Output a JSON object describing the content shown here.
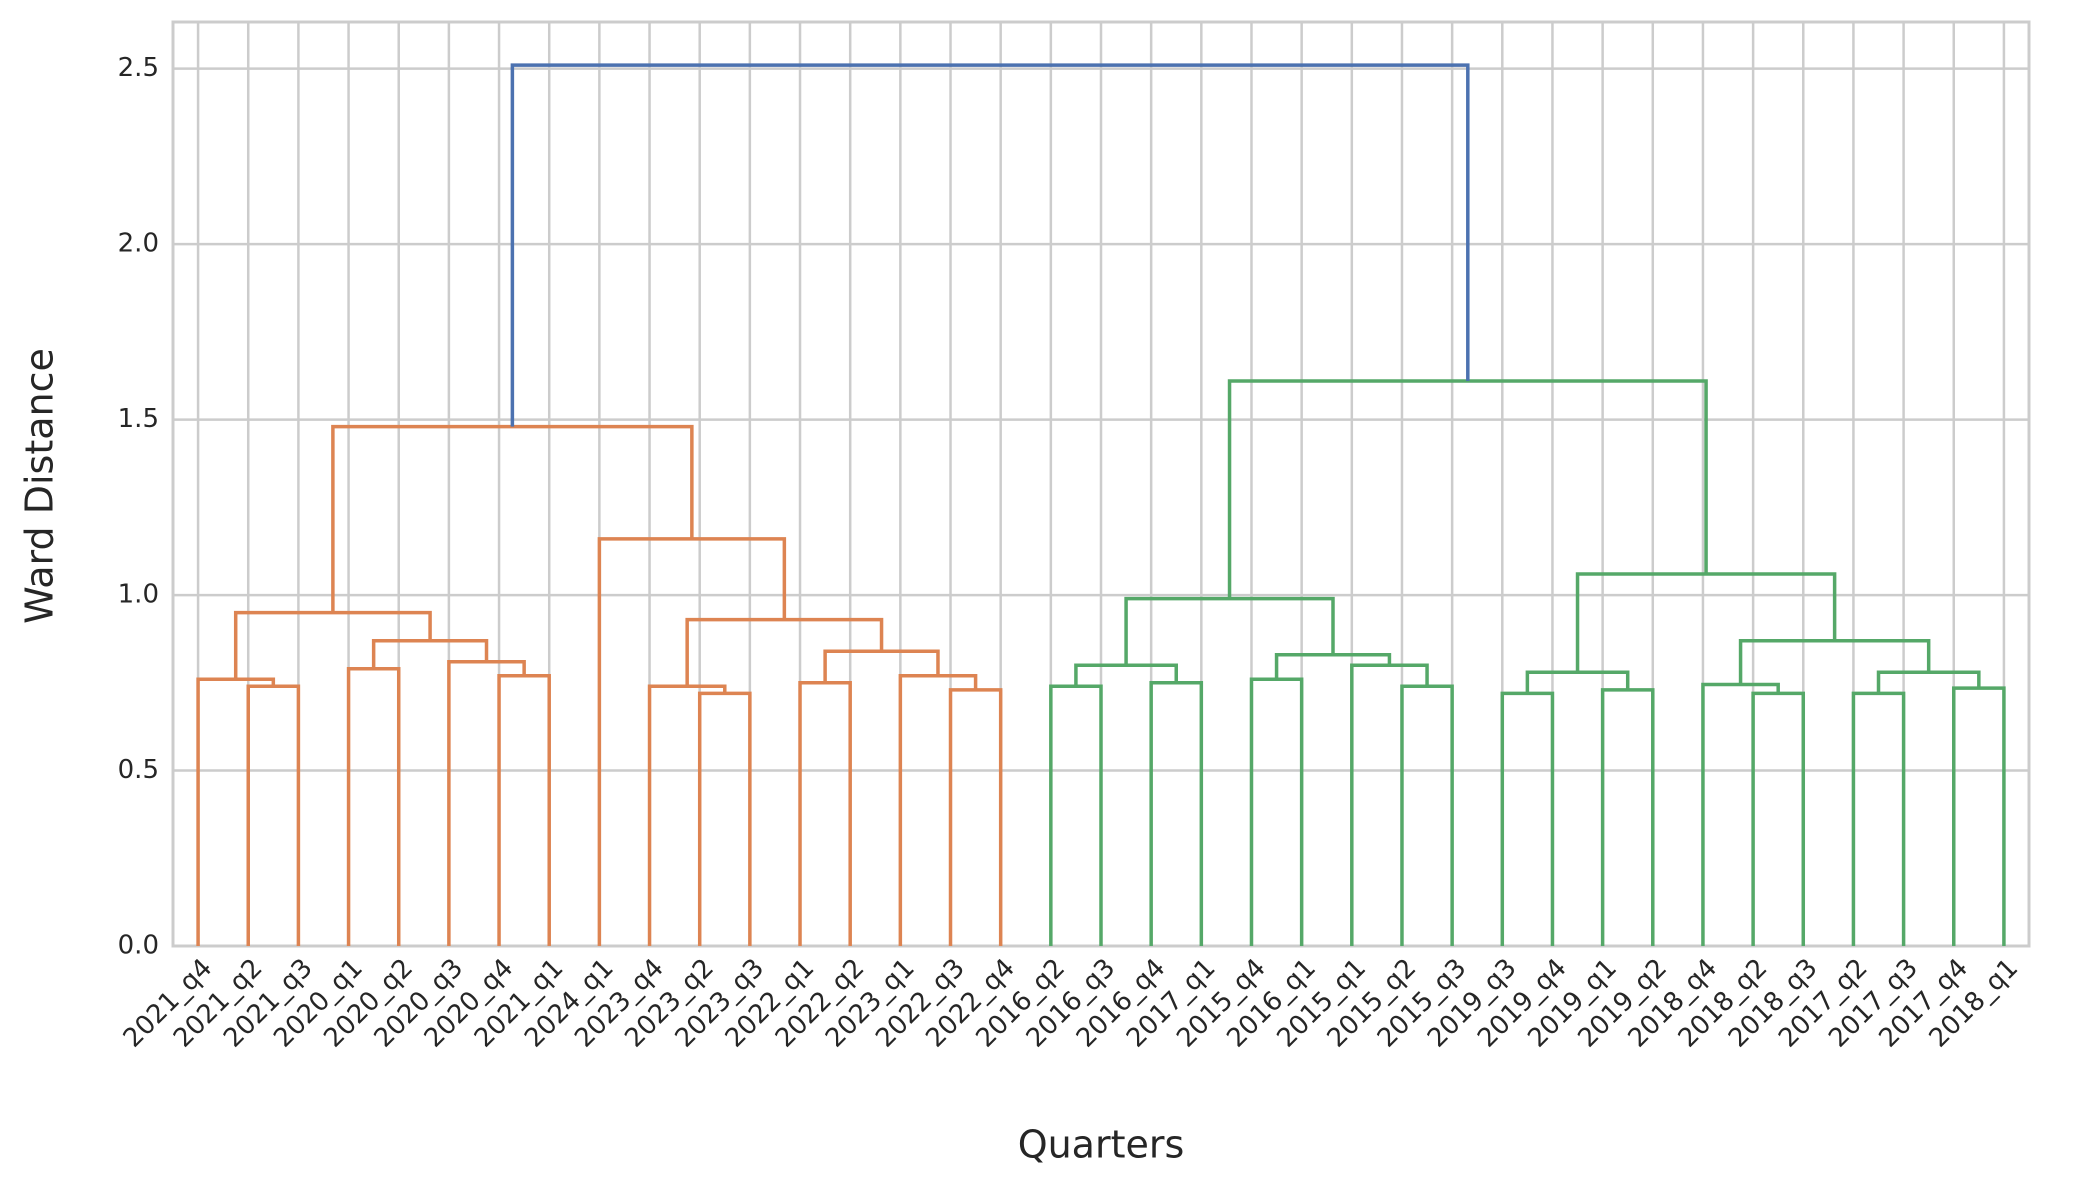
{
  "chart_data": {
    "type": "dendrogram",
    "xlabel": "Quarters",
    "ylabel": "Ward Distance",
    "ylim": [
      0,
      2.633
    ],
    "yticks": [
      {
        "value": 0,
        "label": "0.0"
      },
      0.5,
      {
        "value": 1,
        "label": "1.0"
      },
      1.5,
      {
        "value": 2,
        "label": "2.0"
      },
      2.5
    ],
    "grid": true,
    "labels": [
      "2021_q4",
      "2021_q2",
      "2021_q3",
      "2020_q1",
      "2020_q2",
      "2020_q3",
      "2020_q4",
      "2021_q1",
      "2024_q1",
      "2023_q4",
      "2023_q2",
      "2023_q3",
      "2022_q1",
      "2022_q2",
      "2023_q1",
      "2022_q3",
      "2022_q4",
      "2016_q2",
      "2016_q3",
      "2016_q4",
      "2017_q1",
      "2015_q4",
      "2016_q1",
      "2015_q1",
      "2015_q2",
      "2015_q3",
      "2019_q3",
      "2019_q4",
      "2019_q1",
      "2019_q2",
      "2018_q4",
      "2018_q2",
      "2018_q3",
      "2017_q2",
      "2017_q3",
      "2017_q4",
      "2018_q1"
    ],
    "links": [
      {
        "children": [
          1,
          2
        ],
        "height": 0.74,
        "color": "#dd8452"
      },
      {
        "children": [
          0,
          37
        ],
        "height": 0.76,
        "color": "#dd8452"
      },
      {
        "children": [
          3,
          4
        ],
        "height": 0.79,
        "color": "#dd8452"
      },
      {
        "children": [
          6,
          7
        ],
        "height": 0.77,
        "color": "#dd8452"
      },
      {
        "children": [
          5,
          40
        ],
        "height": 0.81,
        "color": "#dd8452"
      },
      {
        "children": [
          39,
          41
        ],
        "height": 0.87,
        "color": "#dd8452"
      },
      {
        "children": [
          38,
          42
        ],
        "height": 0.95,
        "color": "#dd8452"
      },
      {
        "children": [
          10,
          11
        ],
        "height": 0.72,
        "color": "#dd8452"
      },
      {
        "children": [
          9,
          44
        ],
        "height": 0.74,
        "color": "#dd8452"
      },
      {
        "children": [
          12,
          13
        ],
        "height": 0.75,
        "color": "#dd8452"
      },
      {
        "children": [
          15,
          16
        ],
        "height": 0.73,
        "color": "#dd8452"
      },
      {
        "children": [
          14,
          47
        ],
        "height": 0.77,
        "color": "#dd8452"
      },
      {
        "children": [
          46,
          48
        ],
        "height": 0.84,
        "color": "#dd8452"
      },
      {
        "children": [
          45,
          49
        ],
        "height": 0.93,
        "color": "#dd8452"
      },
      {
        "children": [
          8,
          50
        ],
        "height": 1.16,
        "color": "#dd8452"
      },
      {
        "children": [
          43,
          51
        ],
        "height": 1.48,
        "color": "#dd8452"
      },
      {
        "children": [
          17,
          18
        ],
        "height": 0.74,
        "color": "#55a868"
      },
      {
        "children": [
          19,
          20
        ],
        "height": 0.75,
        "color": "#55a868"
      },
      {
        "children": [
          53,
          54
        ],
        "height": 0.8,
        "color": "#55a868"
      },
      {
        "children": [
          21,
          22
        ],
        "height": 0.76,
        "color": "#55a868"
      },
      {
        "children": [
          24,
          25
        ],
        "height": 0.74,
        "color": "#55a868"
      },
      {
        "children": [
          23,
          57
        ],
        "height": 0.8,
        "color": "#55a868"
      },
      {
        "children": [
          56,
          58
        ],
        "height": 0.83,
        "color": "#55a868"
      },
      {
        "children": [
          55,
          59
        ],
        "height": 0.99,
        "color": "#55a868"
      },
      {
        "children": [
          26,
          27
        ],
        "height": 0.72,
        "color": "#55a868"
      },
      {
        "children": [
          28,
          29
        ],
        "height": 0.73,
        "color": "#55a868"
      },
      {
        "children": [
          61,
          62
        ],
        "height": 0.78,
        "color": "#55a868"
      },
      {
        "children": [
          31,
          32
        ],
        "height": 0.72,
        "color": "#55a868"
      },
      {
        "children": [
          30,
          64
        ],
        "height": 0.745,
        "color": "#55a868"
      },
      {
        "children": [
          33,
          34
        ],
        "height": 0.72,
        "color": "#55a868"
      },
      {
        "children": [
          35,
          36
        ],
        "height": 0.735,
        "color": "#55a868"
      },
      {
        "children": [
          66,
          67
        ],
        "height": 0.78,
        "color": "#55a868"
      },
      {
        "children": [
          65,
          68
        ],
        "height": 0.87,
        "color": "#55a868"
      },
      {
        "children": [
          63,
          69
        ],
        "height": 1.06,
        "color": "#55a868"
      },
      {
        "children": [
          60,
          70
        ],
        "height": 1.61,
        "color": "#55a868"
      },
      {
        "children": [
          52,
          71
        ],
        "height": 2.51,
        "color": "#4c72b0"
      }
    ]
  }
}
